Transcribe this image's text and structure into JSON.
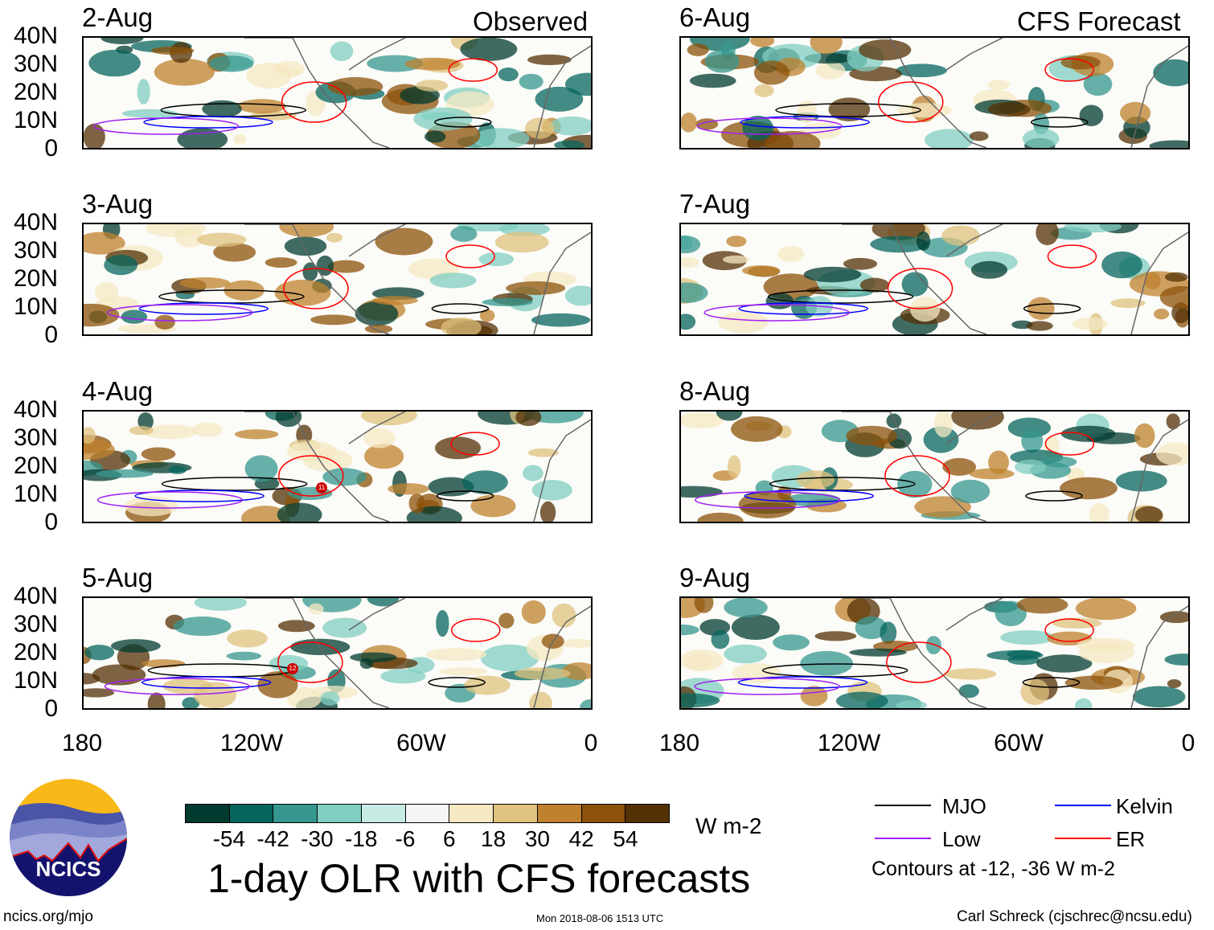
{
  "observed_label": "Observed",
  "forecast_label": "CFS Forecast",
  "panels_observed": [
    "2-Aug",
    "3-Aug",
    "4-Aug",
    "5-Aug"
  ],
  "panels_forecast": [
    "6-Aug",
    "7-Aug",
    "8-Aug",
    "9-Aug"
  ],
  "y_ticks": [
    "40N",
    "30N",
    "20N",
    "10N",
    "0"
  ],
  "x_ticks": [
    "180",
    "120W",
    "60W",
    "0"
  ],
  "storm_markers": [
    "11",
    "12"
  ],
  "colorbar": {
    "labels": [
      "-54",
      "-42",
      "-30",
      "-18",
      "-6",
      "6",
      "18",
      "30",
      "42",
      "54"
    ],
    "colors": [
      "#013b30",
      "#05665e",
      "#35978f",
      "#80cdc1",
      "#c7eae5",
      "#f5f5f5",
      "#f6e8c3",
      "#dfc27d",
      "#bf812d",
      "#8c510a",
      "#543005"
    ],
    "units": "W m-2"
  },
  "title": "1-day OLR with CFS forecasts",
  "legend": {
    "mjo": {
      "label": "MJO",
      "color": "#000000"
    },
    "kelvin": {
      "label": "Kelvin",
      "color": "#0000ff"
    },
    "low": {
      "label": "Low",
      "color": "#a020f0"
    },
    "er": {
      "label": "ER",
      "color": "#ff0000"
    },
    "contours_note": "Contours at -12, -36 W m-2"
  },
  "logo_text": "NCICS",
  "footer": {
    "url": "ncics.org/mjo",
    "timestamp": "Mon 2018-08-06 1513 UTC",
    "credit": "Carl Schreck (cjschrec@ncsu.edu)"
  }
}
